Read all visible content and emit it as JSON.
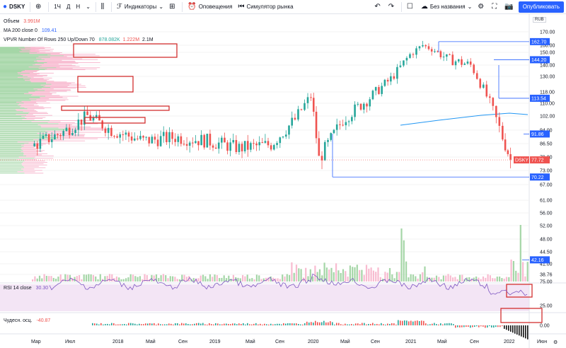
{
  "toolbar": {
    "symbol": "DSKY",
    "interval": "1Ч",
    "interval_day": "Д",
    "interval_week": "Н",
    "indicators": "Индикаторы",
    "alerts": "Оповещения",
    "replay": "Симулятор рынка",
    "layout_name": "Без названия",
    "publish": "Опубликовать"
  },
  "legend": {
    "volume_label": "Объем",
    "volume_value": "3.991M",
    "ma_label": "MA 200 close 0",
    "ma_value": "109.41",
    "vpvr_label": "VPVR Number Of Rows 250 Up/Down 70",
    "vpvr_up": "878.082K",
    "vpvr_down": "1.222M",
    "vpvr_total": "2.1M",
    "rsi_label": "RSI 14 close",
    "rsi_value": "30.30",
    "ao_label": "Чудесн. осц.",
    "ao_value": "-40.87"
  },
  "currency": "RUB",
  "price_axis": {
    "ticks": [
      "170.00",
      "160.00",
      "150.00",
      "140.00",
      "130.00",
      "118.00",
      "110.00",
      "102.00",
      "94.00",
      "86.50",
      "79.00",
      "73.00",
      "67.00",
      "61.00",
      "56.00",
      "52.00",
      "48.00",
      "44.50",
      "41.00",
      "38.76"
    ],
    "tags": [
      {
        "text": "162.70",
        "color": "#2962ff"
      },
      {
        "text": "144.20",
        "color": "#2962ff"
      },
      {
        "text": "113.54",
        "color": "#2962ff"
      },
      {
        "text": "91.86",
        "color": "#2962ff"
      },
      {
        "text": "77.72",
        "color": "#ef5350",
        "label": "DSKY"
      },
      {
        "text": "70.22",
        "color": "#2962ff"
      },
      {
        "text": "42.16",
        "color": "#2962ff"
      }
    ],
    "volume_tick": "75.00",
    "rsi_tick": "25.00",
    "ao_tick": "0.00"
  },
  "time_axis": {
    "labels": [
      "Мар",
      "Июл",
      "2018",
      "Май",
      "Сен",
      "2019",
      "Май",
      "Сен",
      "2020",
      "Май",
      "Сен",
      "2021",
      "Май",
      "Сен",
      "2022",
      "Июн"
    ]
  },
  "colors": {
    "up": "#26a69a",
    "down": "#ef5350",
    "annotation": "#d32f2f",
    "ma": "#2196f3",
    "rsi": "#7e57c2",
    "rsi_bg": "#f3e5f5",
    "level": "#2962ff"
  },
  "chart_data": {
    "type": "candlestick",
    "symbol": "DSKY",
    "price_range": [
      35,
      175
    ],
    "approx_close_path": [
      {
        "date": "2017-03",
        "close": 85
      },
      {
        "date": "2017-07",
        "close": 93
      },
      {
        "date": "2017-10",
        "close": 102
      },
      {
        "date": "2018-01",
        "close": 94
      },
      {
        "date": "2018-05",
        "close": 88
      },
      {
        "date": "2018-09",
        "close": 90
      },
      {
        "date": "2019-01",
        "close": 88
      },
      {
        "date": "2019-05",
        "close": 84
      },
      {
        "date": "2019-09",
        "close": 86
      },
      {
        "date": "2019-12",
        "close": 100
      },
      {
        "date": "2020-02",
        "close": 115
      },
      {
        "date": "2020-03",
        "close": 78
      },
      {
        "date": "2020-06",
        "close": 100
      },
      {
        "date": "2020-09",
        "close": 112
      },
      {
        "date": "2020-12",
        "close": 128
      },
      {
        "date": "2021-02",
        "close": 145
      },
      {
        "date": "2021-04",
        "close": 160
      },
      {
        "date": "2021-07",
        "close": 145
      },
      {
        "date": "2021-10",
        "close": 140
      },
      {
        "date": "2021-12",
        "close": 115
      },
      {
        "date": "2022-02",
        "close": 90
      },
      {
        "date": "2022-03",
        "close": 77.72
      }
    ],
    "ma200_value": 109.41,
    "last_price": 77.72,
    "rsi_value": 30.3,
    "ao_value": -40.87
  }
}
